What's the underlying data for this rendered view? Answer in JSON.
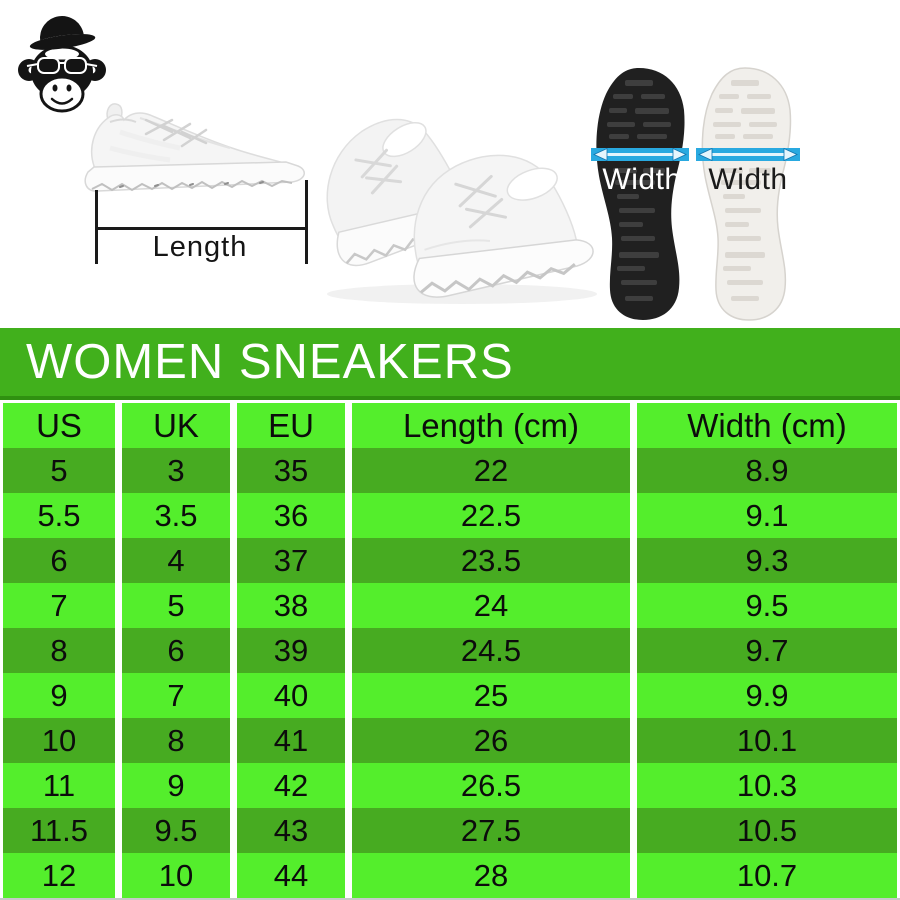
{
  "photos": {
    "length_label": "Length",
    "width_label_black_sole": "Width",
    "width_label_white_sole": "Width"
  },
  "chart_data": {
    "type": "table",
    "title": "WOMEN SNEAKERS",
    "columns": [
      "US",
      "UK",
      "EU",
      "Length (cm)",
      "Width (cm)"
    ],
    "rows": [
      [
        "5",
        "3",
        "35",
        "22",
        "8.9"
      ],
      [
        "5.5",
        "3.5",
        "36",
        "22.5",
        "9.1"
      ],
      [
        "6",
        "4",
        "37",
        "23.5",
        "9.3"
      ],
      [
        "7",
        "5",
        "38",
        "24",
        "9.5"
      ],
      [
        "8",
        "6",
        "39",
        "24.5",
        "9.7"
      ],
      [
        "9",
        "7",
        "40",
        "25",
        "9.9"
      ],
      [
        "10",
        "8",
        "41",
        "26",
        "10.1"
      ],
      [
        "11",
        "9",
        "42",
        "26.5",
        "10.3"
      ],
      [
        "11.5",
        "9.5",
        "43",
        "27.5",
        "10.5"
      ],
      [
        "12",
        "10",
        "44",
        "28",
        "10.7"
      ]
    ]
  },
  "colors": {
    "title_band": "#41b01c",
    "title_band_edge": "#2f9110",
    "row_bright": "#54ee2c",
    "row_dark": "#47ab21",
    "measure_arrow_band": "#29a9e0",
    "measure_line": "#1a1a1a"
  }
}
